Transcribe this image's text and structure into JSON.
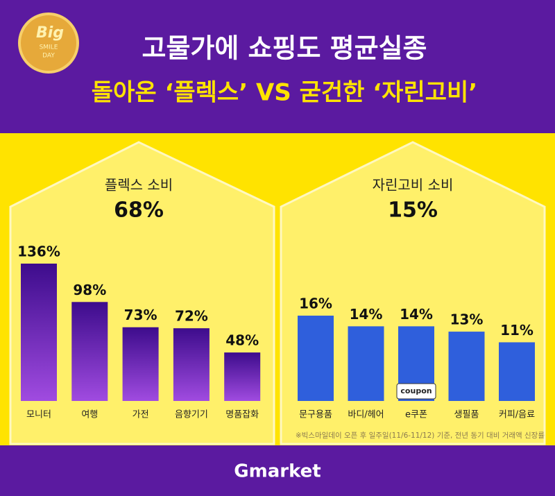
{
  "headline": [
    "고물가에 쇼핑도 평균실종",
    "돌아온 ‘플렉스’ VS 굳건한 ‘자린고비’"
  ],
  "badge": {
    "big": "Big",
    "smile": "SMILE",
    "day": "DAY"
  },
  "chart_data": [
    {
      "type": "bar",
      "title": "플렉스 소비",
      "subtitle": "68%",
      "categories": [
        "모니터",
        "여행",
        "가전",
        "음향기기",
        "명품잡화"
      ],
      "values": [
        136,
        98,
        73,
        72,
        48
      ],
      "value_labels": [
        "136%",
        "98%",
        "73%",
        "72%",
        "48%"
      ],
      "color": "#6a22b8"
    },
    {
      "type": "bar",
      "title": "자린고비 소비",
      "subtitle": "15%",
      "categories": [
        "문구용품",
        "바디/헤어",
        "e쿠폰",
        "생필품",
        "커피/음료"
      ],
      "values": [
        16,
        14,
        14,
        13,
        11
      ],
      "value_labels": [
        "16%",
        "14%",
        "14%",
        "13%",
        "11%"
      ],
      "color": "#2f5fdc"
    }
  ],
  "coupon_icon": "coupon",
  "footnote": "※빅스마일데이 오픈 후 일주일(11/6-11/12) 기준, 전년 동기 대비 거래액 신장률",
  "brand": "Gmarket"
}
